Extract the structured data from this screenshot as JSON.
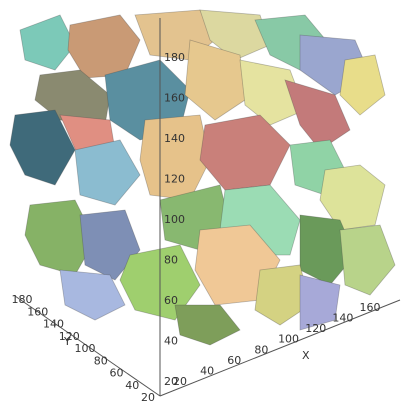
{
  "axes": {
    "z": {
      "ticks": [
        20,
        40,
        60,
        80,
        100,
        120,
        140,
        160,
        180
      ]
    },
    "x": {
      "label": "X",
      "ticks": [
        20,
        40,
        60,
        80,
        100,
        120,
        140,
        160
      ]
    },
    "y": {
      "label": "Y",
      "ticks": [
        20,
        40,
        60,
        80,
        100,
        120,
        140,
        160,
        180
      ]
    }
  }
}
